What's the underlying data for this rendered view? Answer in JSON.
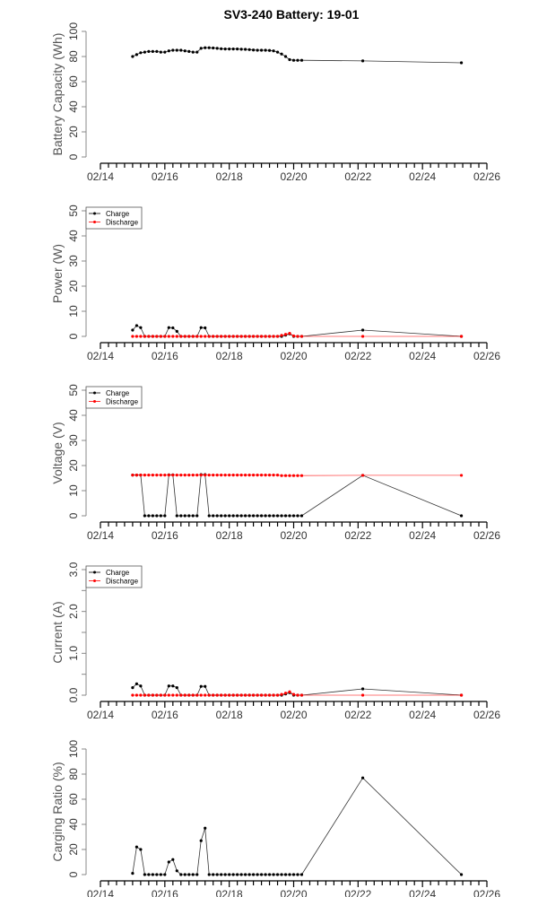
{
  "chart_data": [
    {
      "type": "line",
      "title": "SV3-240 Battery: 19-01",
      "ylabel": "Battery Capacity (Wh)",
      "ylim": [
        0,
        100
      ],
      "yticks": [
        0,
        20,
        40,
        60,
        80,
        100
      ],
      "ytick_labels": [
        "0",
        "20",
        "40",
        "60",
        "80",
        "100"
      ],
      "legend": null,
      "series": [
        {
          "name": "Capacity",
          "color": "#000000",
          "values": [
            80,
            81.5,
            83,
            83.5,
            84,
            84,
            84,
            83.5,
            83.5,
            84.5,
            85,
            85,
            85,
            84.5,
            84,
            83.5,
            83.5,
            86.5,
            87,
            87,
            86.8,
            86.5,
            86.2,
            86,
            86,
            86,
            86,
            85.8,
            85.7,
            85.5,
            85.2,
            85,
            85,
            85,
            84.8,
            84.5,
            83.5,
            82,
            80,
            77.5,
            77,
            77,
            77,
            76.5,
            75
          ]
        }
      ]
    },
    {
      "type": "line",
      "ylabel": "Power (W)",
      "ylim": [
        0,
        50
      ],
      "yticks": [
        0,
        10,
        20,
        30,
        40,
        50
      ],
      "ytick_labels": [
        "0",
        "10",
        "20",
        "30",
        "40",
        "50"
      ],
      "legend": "top-left",
      "series": [
        {
          "name": "Charge",
          "color": "#000000",
          "values": [
            2.5,
            4.3,
            3.5,
            0,
            0,
            0,
            0,
            0,
            0,
            3.5,
            3.4,
            2.0,
            0,
            0,
            0,
            0,
            0,
            3.5,
            3.4,
            0,
            0,
            0,
            0,
            0,
            0,
            0,
            0,
            0,
            0,
            0,
            0,
            0,
            0,
            0,
            0,
            0,
            0,
            0,
            0.5,
            1.0,
            0,
            0,
            0,
            2.5,
            0
          ]
        },
        {
          "name": "Discharge",
          "color": "#ff0000",
          "values": [
            0,
            0,
            0,
            0,
            0,
            0,
            0,
            0,
            0,
            0,
            0,
            0,
            0,
            0,
            0,
            0,
            0,
            0,
            0,
            0,
            0,
            0,
            0,
            0,
            0,
            0,
            0,
            0,
            0,
            0,
            0,
            0,
            0,
            0,
            0,
            0,
            0,
            0.4,
            0.8,
            1.2,
            0.2,
            0,
            0,
            0,
            0
          ]
        }
      ]
    },
    {
      "type": "line",
      "ylabel": "Voltage (V)",
      "ylim": [
        0,
        50
      ],
      "yticks": [
        0,
        10,
        20,
        30,
        40,
        50
      ],
      "ytick_labels": [
        "0",
        "10",
        "20",
        "30",
        "40",
        "50"
      ],
      "legend": "top-left",
      "series": [
        {
          "name": "Charge",
          "color": "#000000",
          "values": [
            16.2,
            16.2,
            16.2,
            0,
            0,
            0,
            0,
            0,
            0,
            16.3,
            16.3,
            0,
            0,
            0,
            0,
            0,
            0,
            16.4,
            16.4,
            0,
            0,
            0,
            0,
            0,
            0,
            0,
            0,
            0,
            0,
            0,
            0,
            0,
            0,
            0,
            0,
            0,
            0,
            0,
            0,
            0,
            0,
            0,
            0,
            16.1,
            0
          ]
        },
        {
          "name": "Discharge",
          "color": "#ff0000",
          "values": [
            16.2,
            16.2,
            16.2,
            16.2,
            16.2,
            16.2,
            16.2,
            16.2,
            16.2,
            16.2,
            16.2,
            16.2,
            16.2,
            16.2,
            16.2,
            16.2,
            16.2,
            16.2,
            16.2,
            16.2,
            16.2,
            16.2,
            16.2,
            16.2,
            16.2,
            16.2,
            16.2,
            16.2,
            16.2,
            16.2,
            16.2,
            16.2,
            16.2,
            16.2,
            16.2,
            16.2,
            16.2,
            16.0,
            16.0,
            16.0,
            16.0,
            16.0,
            16.0,
            16.1,
            16.1
          ]
        }
      ]
    },
    {
      "type": "line",
      "ylabel": "Current (A)",
      "ylim": [
        0,
        3
      ],
      "yticks": [
        0,
        0.5,
        1,
        1.5,
        2,
        2.5,
        3
      ],
      "ytick_labels": [
        "0.0",
        "",
        "1.0",
        "",
        "2.0",
        "",
        "3.0"
      ],
      "legend": "top-left",
      "series": [
        {
          "name": "Charge",
          "color": "#000000",
          "values": [
            0.18,
            0.27,
            0.22,
            0,
            0,
            0,
            0,
            0,
            0,
            0.22,
            0.22,
            0.18,
            0,
            0,
            0,
            0,
            0,
            0.21,
            0.21,
            0,
            0,
            0,
            0,
            0,
            0,
            0,
            0,
            0,
            0,
            0,
            0,
            0,
            0,
            0,
            0,
            0,
            0,
            0,
            0.03,
            0.06,
            0,
            0,
            0,
            0.15,
            0
          ]
        },
        {
          "name": "Discharge",
          "color": "#ff0000",
          "values": [
            0,
            0,
            0,
            0,
            0,
            0,
            0,
            0,
            0,
            0,
            0,
            0,
            0,
            0,
            0,
            0,
            0,
            0,
            0,
            0,
            0,
            0,
            0,
            0,
            0,
            0,
            0,
            0,
            0,
            0,
            0,
            0,
            0,
            0,
            0,
            0,
            0,
            0.02,
            0.05,
            0.08,
            0.02,
            0,
            0,
            0,
            0
          ]
        }
      ]
    },
    {
      "type": "line",
      "ylabel": "Carging Ratio (%)",
      "ylim": [
        0,
        100
      ],
      "yticks": [
        0,
        20,
        40,
        60,
        80,
        100
      ],
      "ytick_labels": [
        "0",
        "20",
        "40",
        "60",
        "80",
        "100"
      ],
      "legend": null,
      "series": [
        {
          "name": "Ratio",
          "color": "#000000",
          "values": [
            1,
            22,
            20,
            0,
            0,
            0,
            0,
            0,
            0,
            10,
            12,
            3,
            0,
            0,
            0,
            0,
            0,
            27,
            37,
            0,
            0,
            0,
            0,
            0,
            0,
            0,
            0,
            0,
            0,
            0,
            0,
            0,
            0,
            0,
            0,
            0,
            0,
            0,
            0,
            0,
            0,
            0,
            0,
            77,
            0
          ]
        }
      ]
    }
  ],
  "x": [
    "02/15 00:00",
    "02/15 03:00",
    "02/15 06:00",
    "02/15 09:00",
    "02/15 12:00",
    "02/15 15:00",
    "02/15 18:00",
    "02/15 21:00",
    "02/16 00:00",
    "02/16 03:00",
    "02/16 06:00",
    "02/16 09:00",
    "02/16 12:00",
    "02/16 15:00",
    "02/16 18:00",
    "02/16 21:00",
    "02/17 00:00",
    "02/17 03:00",
    "02/17 06:00",
    "02/17 09:00",
    "02/17 12:00",
    "02/17 15:00",
    "02/17 18:00",
    "02/17 21:00",
    "02/18 00:00",
    "02/18 03:00",
    "02/18 06:00",
    "02/18 09:00",
    "02/18 12:00",
    "02/18 15:00",
    "02/18 18:00",
    "02/18 21:00",
    "02/19 00:00",
    "02/19 03:00",
    "02/19 06:00",
    "02/19 09:00",
    "02/19 12:00",
    "02/19 15:00",
    "02/19 18:00",
    "02/19 21:00",
    "02/20 00:00",
    "02/20 03:00",
    "02/20 06:00",
    "02/22 03:30",
    "02/25 05:00"
  ],
  "xlim": [
    "02/14 00:00",
    "02/26 00:00"
  ],
  "xtick_labels": [
    "02/14",
    "02/16",
    "02/18",
    "02/20",
    "02/22",
    "02/24",
    "02/26"
  ],
  "legend_labels": {
    "charge": "Charge",
    "discharge": "Discharge"
  }
}
